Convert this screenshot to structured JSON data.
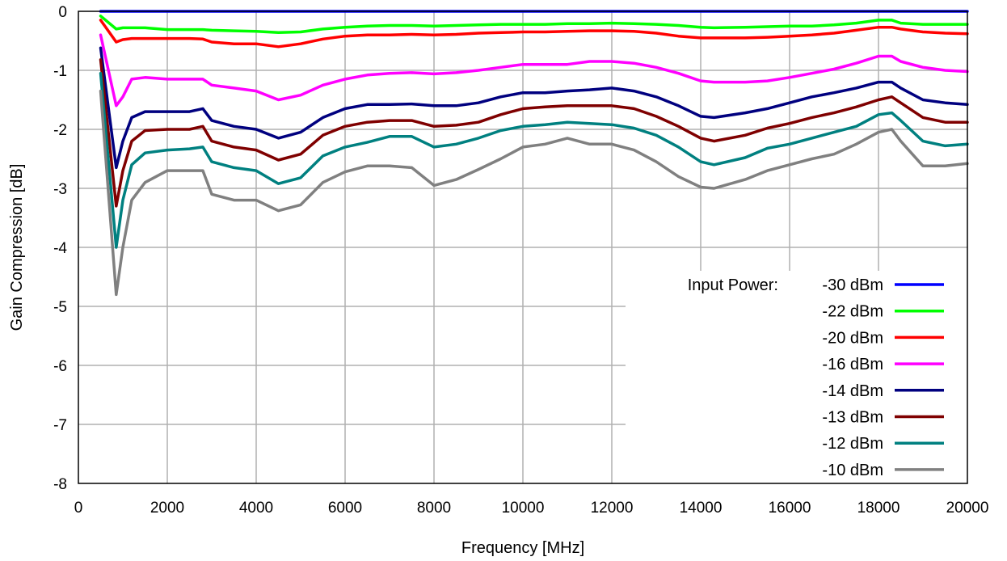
{
  "chart_data": {
    "type": "line",
    "xlabel": "Frequency [MHz]",
    "ylabel": "Gain Compression [dB]",
    "xlim": [
      0,
      20000
    ],
    "ylim": [
      -8,
      0
    ],
    "xticks": [
      0,
      2000,
      4000,
      6000,
      8000,
      10000,
      12000,
      14000,
      16000,
      18000,
      20000
    ],
    "yticks": [
      0,
      -1,
      -2,
      -3,
      -4,
      -5,
      -6,
      -7,
      -8
    ],
    "grid": true,
    "legend_title": "Input Power:",
    "legend_position": "bottom-right",
    "x": [
      500,
      850,
      1000,
      1200,
      1500,
      2000,
      2500,
      2800,
      3000,
      3500,
      4000,
      4500,
      5000,
      5500,
      6000,
      6500,
      7000,
      7500,
      8000,
      8500,
      9000,
      9500,
      10000,
      10500,
      11000,
      11500,
      12000,
      12500,
      13000,
      13500,
      14000,
      14300,
      15000,
      15500,
      16000,
      16500,
      17000,
      17500,
      18000,
      18300,
      18500,
      19000,
      19500,
      20000
    ],
    "series": [
      {
        "name": "-30 dBm",
        "color": "#0000ff",
        "values": [
          0,
          0,
          0,
          0,
          0,
          0,
          0,
          0,
          0,
          0,
          0,
          0,
          0,
          0,
          0,
          0,
          0,
          0,
          0,
          0,
          0,
          0,
          0,
          0,
          0,
          0,
          0,
          0,
          0,
          0,
          0,
          0,
          0,
          0,
          0,
          0,
          0,
          0,
          0,
          0,
          0,
          0,
          0,
          0
        ]
      },
      {
        "name": "-22 dBm",
        "color": "#00ff00",
        "values": [
          -0.08,
          -0.3,
          -0.28,
          -0.28,
          -0.28,
          -0.31,
          -0.31,
          -0.31,
          -0.32,
          -0.33,
          -0.34,
          -0.36,
          -0.35,
          -0.3,
          -0.27,
          -0.25,
          -0.24,
          -0.24,
          -0.25,
          -0.24,
          -0.23,
          -0.22,
          -0.22,
          -0.22,
          -0.21,
          -0.21,
          -0.2,
          -0.21,
          -0.22,
          -0.24,
          -0.27,
          -0.28,
          -0.27,
          -0.26,
          -0.25,
          -0.25,
          -0.23,
          -0.2,
          -0.15,
          -0.15,
          -0.2,
          -0.22,
          -0.22,
          -0.22
        ]
      },
      {
        "name": "-20 dBm",
        "color": "#ff0000",
        "values": [
          -0.15,
          -0.52,
          -0.48,
          -0.46,
          -0.46,
          -0.46,
          -0.46,
          -0.47,
          -0.52,
          -0.55,
          -0.55,
          -0.6,
          -0.55,
          -0.47,
          -0.42,
          -0.4,
          -0.4,
          -0.39,
          -0.4,
          -0.39,
          -0.37,
          -0.36,
          -0.35,
          -0.35,
          -0.34,
          -0.33,
          -0.33,
          -0.34,
          -0.37,
          -0.42,
          -0.45,
          -0.45,
          -0.45,
          -0.44,
          -0.42,
          -0.4,
          -0.37,
          -0.32,
          -0.27,
          -0.27,
          -0.3,
          -0.35,
          -0.37,
          -0.38
        ]
      },
      {
        "name": "-16 dBm",
        "color": "#ff00ff",
        "values": [
          -0.4,
          -1.6,
          -1.45,
          -1.15,
          -1.12,
          -1.15,
          -1.15,
          -1.15,
          -1.25,
          -1.3,
          -1.35,
          -1.5,
          -1.42,
          -1.25,
          -1.15,
          -1.08,
          -1.05,
          -1.04,
          -1.06,
          -1.04,
          -1.0,
          -0.95,
          -0.9,
          -0.9,
          -0.9,
          -0.85,
          -0.85,
          -0.88,
          -0.95,
          -1.05,
          -1.18,
          -1.2,
          -1.2,
          -1.18,
          -1.12,
          -1.05,
          -0.98,
          -0.88,
          -0.76,
          -0.76,
          -0.85,
          -0.95,
          -1.0,
          -1.02
        ]
      },
      {
        "name": "-14 dBm",
        "color": "#00007f",
        "values": [
          -0.62,
          -2.65,
          -2.2,
          -1.8,
          -1.7,
          -1.7,
          -1.7,
          -1.65,
          -1.85,
          -1.95,
          -2.0,
          -2.15,
          -2.05,
          -1.8,
          -1.65,
          -1.58,
          -1.58,
          -1.57,
          -1.6,
          -1.6,
          -1.55,
          -1.45,
          -1.38,
          -1.38,
          -1.35,
          -1.33,
          -1.3,
          -1.35,
          -1.45,
          -1.6,
          -1.78,
          -1.8,
          -1.72,
          -1.65,
          -1.55,
          -1.45,
          -1.38,
          -1.3,
          -1.2,
          -1.2,
          -1.3,
          -1.5,
          -1.55,
          -1.58
        ]
      },
      {
        "name": "-13 dBm",
        "color": "#7f0000",
        "values": [
          -0.82,
          -3.3,
          -2.7,
          -2.2,
          -2.02,
          -2.0,
          -2.0,
          -1.95,
          -2.2,
          -2.3,
          -2.35,
          -2.52,
          -2.42,
          -2.1,
          -1.95,
          -1.88,
          -1.85,
          -1.85,
          -1.95,
          -1.93,
          -1.88,
          -1.75,
          -1.65,
          -1.62,
          -1.6,
          -1.6,
          -1.6,
          -1.65,
          -1.78,
          -1.95,
          -2.15,
          -2.2,
          -2.1,
          -1.98,
          -1.9,
          -1.8,
          -1.72,
          -1.62,
          -1.5,
          -1.45,
          -1.55,
          -1.8,
          -1.88,
          -1.88
        ]
      },
      {
        "name": "-12 dBm",
        "color": "#008080",
        "values": [
          -1.05,
          -4.0,
          -3.2,
          -2.6,
          -2.4,
          -2.35,
          -2.33,
          -2.3,
          -2.55,
          -2.65,
          -2.7,
          -2.92,
          -2.82,
          -2.45,
          -2.3,
          -2.22,
          -2.12,
          -2.12,
          -2.3,
          -2.25,
          -2.15,
          -2.02,
          -1.95,
          -1.92,
          -1.88,
          -1.9,
          -1.92,
          -1.98,
          -2.1,
          -2.3,
          -2.55,
          -2.6,
          -2.48,
          -2.32,
          -2.25,
          -2.15,
          -2.05,
          -1.95,
          -1.75,
          -1.72,
          -1.85,
          -2.2,
          -2.28,
          -2.25
        ]
      },
      {
        "name": "-10 dBm",
        "color": "#808080",
        "values": [
          -1.35,
          -4.8,
          -4.0,
          -3.2,
          -2.9,
          -2.7,
          -2.7,
          -2.7,
          -3.1,
          -3.2,
          -3.2,
          -3.38,
          -3.28,
          -2.9,
          -2.72,
          -2.62,
          -2.62,
          -2.65,
          -2.95,
          -2.85,
          -2.68,
          -2.5,
          -2.3,
          -2.25,
          -2.15,
          -2.25,
          -2.25,
          -2.35,
          -2.55,
          -2.8,
          -2.98,
          -3.0,
          -2.85,
          -2.7,
          -2.6,
          -2.5,
          -2.42,
          -2.25,
          -2.05,
          -2.0,
          -2.2,
          -2.62,
          -2.62,
          -2.58
        ]
      }
    ]
  }
}
